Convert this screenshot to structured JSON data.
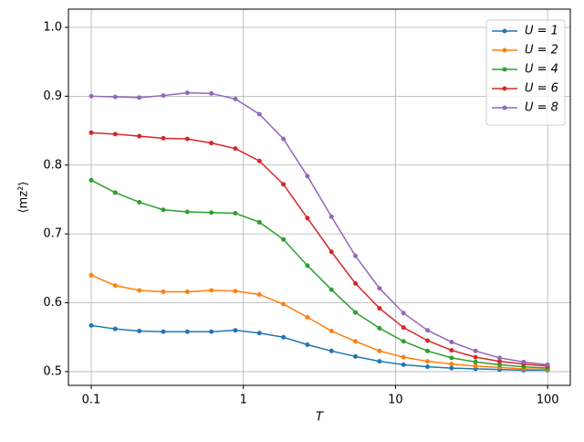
{
  "chart_data": {
    "type": "line",
    "xlabel": "T",
    "ylabel": "⟨mz²⟩",
    "xscale": "log",
    "grid": true,
    "legend": "upper right",
    "x": [
      0.1,
      0.1438,
      0.2069,
      0.2976,
      0.4281,
      0.6158,
      0.8859,
      1.2743,
      1.833,
      2.637,
      3.793,
      5.456,
      7.848,
      11.29,
      16.24,
      23.36,
      33.6,
      48.33,
      69.52,
      100
    ],
    "xlim": [
      0.0708,
      141
    ],
    "xticks": [
      0.1,
      1,
      10,
      100
    ],
    "ylim": [
      0.48,
      1.0265
    ],
    "yticks": [
      0.5,
      0.6,
      0.7,
      0.8,
      0.9,
      {
        "value": 1,
        "label": "1.0"
      }
    ],
    "series": [
      {
        "name": "U = 1",
        "color": "#1f77b4",
        "values": [
          0.567,
          0.562,
          0.559,
          0.558,
          0.558,
          0.558,
          0.56,
          0.556,
          0.55,
          0.539,
          0.53,
          0.522,
          0.515,
          0.51,
          0.507,
          0.505,
          0.504,
          0.503,
          0.502,
          0.502
        ]
      },
      {
        "name": "U = 2",
        "color": "#ff7f0e",
        "values": [
          0.64,
          0.625,
          0.618,
          0.616,
          0.616,
          0.618,
          0.617,
          0.612,
          0.598,
          0.579,
          0.559,
          0.544,
          0.53,
          0.521,
          0.515,
          0.511,
          0.508,
          0.506,
          0.504,
          0.503
        ]
      },
      {
        "name": "U = 4",
        "color": "#2ca02c",
        "values": [
          0.778,
          0.76,
          0.746,
          0.735,
          0.732,
          0.731,
          0.73,
          0.717,
          0.692,
          0.654,
          0.619,
          0.586,
          0.563,
          0.544,
          0.53,
          0.52,
          0.514,
          0.51,
          0.507,
          0.505
        ]
      },
      {
        "name": "U = 6",
        "color": "#d62728",
        "values": [
          0.847,
          0.845,
          0.842,
          0.839,
          0.838,
          0.832,
          0.824,
          0.806,
          0.772,
          0.723,
          0.674,
          0.628,
          0.592,
          0.564,
          0.545,
          0.531,
          0.521,
          0.515,
          0.511,
          0.508
        ]
      },
      {
        "name": "U = 8",
        "color": "#9467bd",
        "values": [
          0.9,
          0.899,
          0.898,
          0.901,
          0.905,
          0.904,
          0.896,
          0.874,
          0.838,
          0.784,
          0.725,
          0.668,
          0.621,
          0.585,
          0.56,
          0.543,
          0.53,
          0.52,
          0.514,
          0.51
        ]
      }
    ]
  }
}
